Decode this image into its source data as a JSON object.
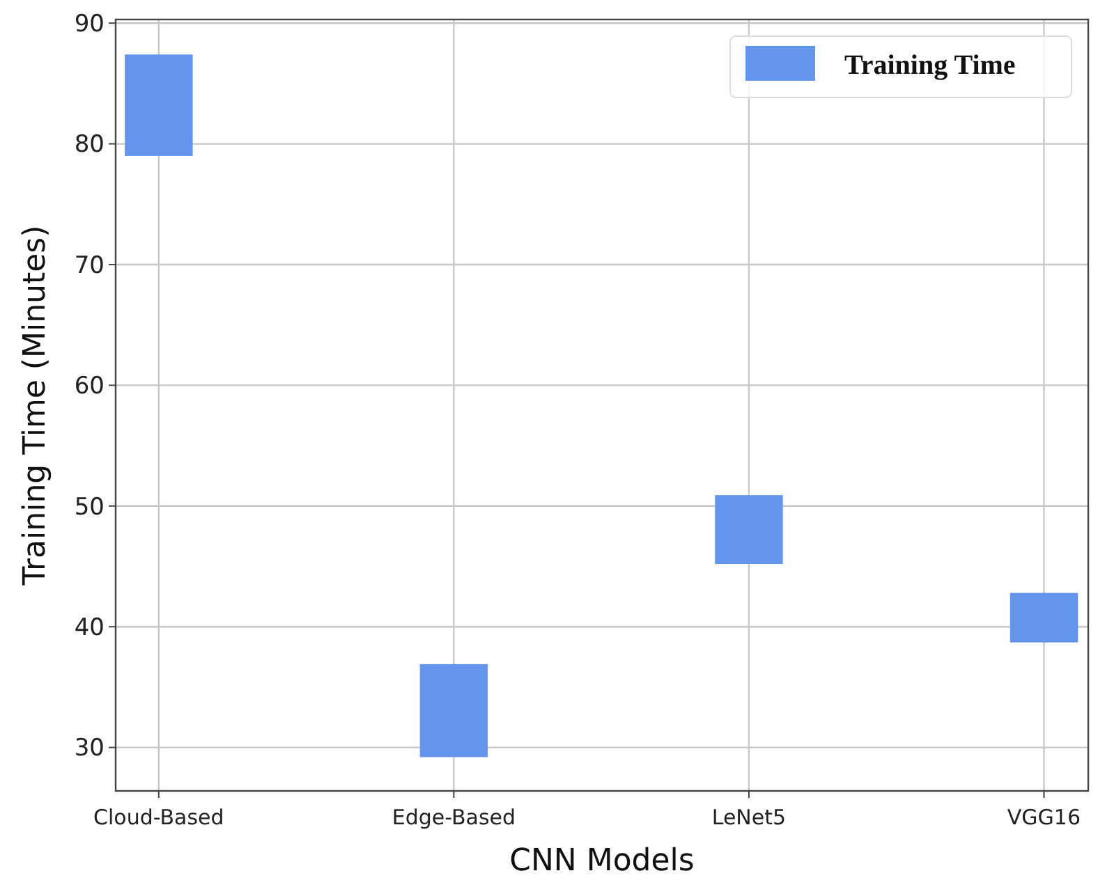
{
  "chart_data": {
    "type": "bar",
    "xlabel": "CNN Models",
    "ylabel": "Training Time (Minutes)",
    "categories": [
      "Cloud-Based",
      "Edge-Based",
      "LeNet5",
      "VGG16"
    ],
    "series": [
      {
        "name": "Training Time",
        "color": "#6495ed",
        "values": [
          8.4,
          7.7,
          5.7,
          4.1
        ],
        "base": [
          79.0,
          29.2,
          45.2,
          38.7
        ]
      }
    ],
    "ylim": [
      26.4,
      90.3
    ],
    "yticks": [
      30,
      40,
      50,
      60,
      70,
      80,
      90
    ],
    "grid": true,
    "legend": "top right"
  }
}
